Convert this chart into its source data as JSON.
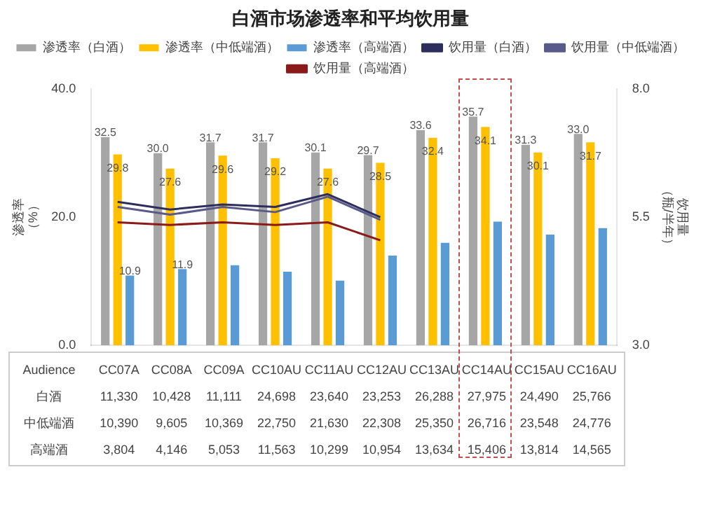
{
  "chart_data": {
    "type": "bar",
    "title": "白酒市场渗透率和平均饮用量",
    "ylabel": "渗透率（%）",
    "y2label": "饮用量（瓶/半年）",
    "categories": [
      "CC07A",
      "CC08A",
      "CC09A",
      "CC10AU",
      "CC11AU",
      "CC12AU",
      "CC13AU",
      "CC14AU",
      "CC15AU",
      "CC16AU"
    ],
    "ylim": [
      0,
      40
    ],
    "yticks": [
      {
        "value": 0,
        "label": "0.0"
      },
      {
        "value": 20,
        "label": "20.0"
      },
      {
        "value": 40,
        "label": "40.0"
      }
    ],
    "y2lim": [
      3,
      8
    ],
    "y2ticks": [
      {
        "value": 3,
        "label": "3.0"
      },
      {
        "value": 5.5,
        "label": "5.5"
      },
      {
        "value": 8,
        "label": "8.0"
      }
    ],
    "grid": false,
    "legend": "top",
    "series": [
      {
        "name": "渗透率（白酒）",
        "color": "#a6a6a6",
        "values": [
          32.5,
          30.0,
          31.7,
          31.7,
          30.1,
          29.7,
          33.6,
          35.7,
          31.3,
          33.0
        ],
        "value_labels": [
          "32.5",
          "30.0",
          "31.7",
          "31.7",
          "30.1",
          "29.7",
          "33.6",
          "35.7",
          "31.3",
          "33.0"
        ]
      },
      {
        "name": "渗透率（中低端酒）",
        "color": "#ffc000",
        "values": [
          29.8,
          27.6,
          29.6,
          29.2,
          27.6,
          28.5,
          32.4,
          34.1,
          30.1,
          31.7
        ],
        "value_labels": [
          "29.8",
          "27.6",
          "29.6",
          "29.2",
          "27.6",
          "28.5",
          "32.4",
          "34.1",
          "30.1",
          "31.7"
        ]
      },
      {
        "name": "渗透率（高端酒）",
        "color": "#5b9bd5",
        "values": [
          10.9,
          11.9,
          12.5,
          11.5,
          10.1,
          14.0,
          16.0,
          19.3,
          17.3,
          18.3
        ],
        "value_labels": [
          "10.9",
          "11.9",
          null,
          null,
          null,
          null,
          null,
          null,
          null,
          null
        ]
      },
      {
        "name": "饮用量（白酒）",
        "type": "line",
        "axis": "y2",
        "color": "#2e2e5e",
        "values": [
          5.8,
          5.65,
          5.75,
          5.7,
          5.95,
          5.5,
          null,
          null,
          null,
          null
        ]
      },
      {
        "name": "饮用量（中低端酒）",
        "type": "line",
        "axis": "y2",
        "color": "#5a5a8a",
        "values": [
          5.7,
          5.55,
          5.7,
          5.6,
          5.9,
          5.45,
          null,
          null,
          null,
          null
        ]
      },
      {
        "name": "饮用量（高端酒）",
        "type": "line",
        "axis": "y2",
        "color": "#8b1a1a",
        "values": [
          5.4,
          5.35,
          5.4,
          5.35,
          5.4,
          5.05,
          null,
          null,
          null,
          null
        ]
      }
    ],
    "annotations": [
      "Audience",
      "白酒 11,330 10,428 11,111 24,698 23,640 23,253 26,288 27,975 24,490 25,766",
      "中低端酒 10,390 9,605 10,369 22,750 21,630 22,308 25,350 26,716 23,548 24,776",
      "高端酒 3,804 4,146 5,053 11,563 10,299 10,954 13,634 15,406 13,814 14,565"
    ]
  }
}
